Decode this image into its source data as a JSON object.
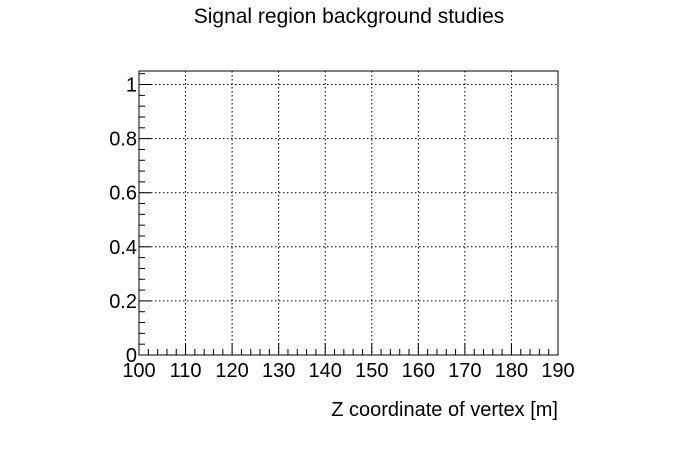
{
  "chart_data": {
    "type": "scatter",
    "title": "Signal region background studies",
    "xlabel": "Z coordinate of vertex [m]",
    "ylabel": "",
    "xlim": [
      100,
      190
    ],
    "ylim": [
      0,
      1.05
    ],
    "xticks": [
      100,
      110,
      120,
      130,
      140,
      150,
      160,
      170,
      180,
      190
    ],
    "xtick_labels": [
      "100",
      "110",
      "120",
      "130",
      "140",
      "150",
      "160",
      "170",
      "180",
      "190"
    ],
    "yticks": [
      0,
      0.2,
      0.4,
      0.6,
      0.8,
      1
    ],
    "ytick_labels": [
      "0",
      "0.2",
      "0.4",
      "0.6",
      "0.8",
      "1"
    ],
    "grid": true,
    "series": []
  }
}
